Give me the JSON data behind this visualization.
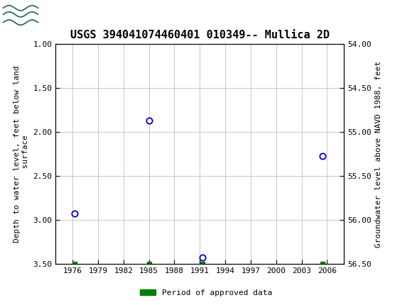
{
  "title": "USGS 394041074460401 010349-- Mullica 2D",
  "ylabel_left": "Depth to water level, feet below land\n surface",
  "ylabel_right": "Groundwater level above NAVD 1988, feet",
  "ylim_left": [
    1.0,
    3.5
  ],
  "ylim_right": [
    56.5,
    54.0
  ],
  "xlim": [
    1974,
    2008
  ],
  "xticks": [
    1976,
    1979,
    1982,
    1985,
    1988,
    1991,
    1994,
    1997,
    2000,
    2003,
    2006
  ],
  "yticks_left": [
    1.0,
    1.5,
    2.0,
    2.5,
    3.0,
    3.5
  ],
  "yticks_right": [
    56.5,
    56.0,
    55.5,
    55.0,
    54.5,
    54.0
  ],
  "data_points": [
    {
      "x": 1976.2,
      "y_left": 2.93
    },
    {
      "x": 1985.0,
      "y_left": 1.87
    },
    {
      "x": 1991.3,
      "y_left": 3.43
    },
    {
      "x": 2005.5,
      "y_left": 2.27
    }
  ],
  "green_bar_points": [
    {
      "x": 1976.2,
      "y_left": 3.5
    },
    {
      "x": 1985.0,
      "y_left": 3.5
    },
    {
      "x": 1991.3,
      "y_left": 3.5
    },
    {
      "x": 2005.5,
      "y_left": 3.5
    }
  ],
  "point_color": "#0000cc",
  "green_color": "#008000",
  "grid_color": "#c8c8c8",
  "background_color": "#ffffff",
  "header_color": "#1a6b3c",
  "title_fontsize": 11,
  "axis_label_fontsize": 8,
  "tick_fontsize": 8,
  "legend_label": "Period of approved data",
  "fig_width": 5.8,
  "fig_height": 4.3,
  "dpi": 100
}
